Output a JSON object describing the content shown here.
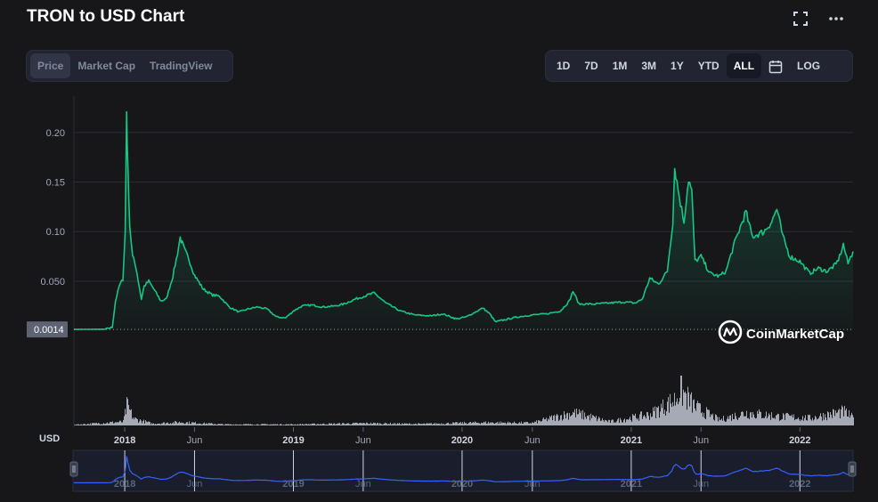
{
  "header": {
    "title": "TRON to USD Chart",
    "fullscreen_icon": "fullscreen-icon",
    "more_icon": "more-horizontal-icon"
  },
  "view_tabs": [
    {
      "label": "Price",
      "active": true
    },
    {
      "label": "Market Cap",
      "active": false
    },
    {
      "label": "TradingView",
      "active": false
    }
  ],
  "range_tabs": [
    {
      "label": "1D",
      "active": false
    },
    {
      "label": "7D",
      "active": false
    },
    {
      "label": "1M",
      "active": false
    },
    {
      "label": "3M",
      "active": false
    },
    {
      "label": "1Y",
      "active": false
    },
    {
      "label": "YTD",
      "active": false
    },
    {
      "label": "ALL",
      "active": true
    }
  ],
  "calendar_icon": "calendar-icon",
  "log_label": "LOG",
  "watermark": "CoinMarketCap",
  "colors": {
    "line": "#16c784",
    "nav_line": "#3861fb",
    "volume": "#c8cfdb",
    "background": "#17171a"
  },
  "chart_data": {
    "type": "line",
    "series_name": "Price",
    "y_axis_ticks": [
      "0.20",
      "0.15",
      "0.10",
      "0.050"
    ],
    "y_tick_values": [
      0.2,
      0.15,
      0.1,
      0.05
    ],
    "ylim": [
      -0.047,
      0.225
    ],
    "reference_label": "0.0014",
    "reference_value": 0.0014,
    "unit_label": "USD",
    "x_ticks": [
      {
        "label": "2018",
        "t": "2018-01-01"
      },
      {
        "label": "Jun",
        "t": "2018-06-01"
      },
      {
        "label": "2019",
        "t": "2019-01-01"
      },
      {
        "label": "Jun",
        "t": "2019-06-01"
      },
      {
        "label": "2020",
        "t": "2020-01-01"
      },
      {
        "label": "Jun",
        "t": "2020-06-01"
      },
      {
        "label": "2021",
        "t": "2021-01-01"
      },
      {
        "label": "Jun",
        "t": "2021-06-01"
      },
      {
        "label": "2022",
        "t": "2022-01-01"
      }
    ],
    "x_range": [
      "2017-09-13",
      "2022-04-26"
    ],
    "points": [
      [
        "2017-09-13",
        0.0014
      ],
      [
        "2017-11-20",
        0.0016
      ],
      [
        "2017-12-05",
        0.0035
      ],
      [
        "2017-12-12",
        0.03
      ],
      [
        "2017-12-20",
        0.045
      ],
      [
        "2017-12-28",
        0.052
      ],
      [
        "2018-01-02",
        0.1
      ],
      [
        "2018-01-05",
        0.222
      ],
      [
        "2018-01-08",
        0.16
      ],
      [
        "2018-01-12",
        0.105
      ],
      [
        "2018-01-18",
        0.075
      ],
      [
        "2018-01-25",
        0.065
      ],
      [
        "2018-02-06",
        0.032
      ],
      [
        "2018-02-12",
        0.045
      ],
      [
        "2018-02-22",
        0.05
      ],
      [
        "2018-03-05",
        0.042
      ],
      [
        "2018-03-20",
        0.03
      ],
      [
        "2018-04-01",
        0.032
      ],
      [
        "2018-04-15",
        0.055
      ],
      [
        "2018-04-25",
        0.078
      ],
      [
        "2018-05-01",
        0.094
      ],
      [
        "2018-05-10",
        0.082
      ],
      [
        "2018-05-20",
        0.072
      ],
      [
        "2018-06-01",
        0.056
      ],
      [
        "2018-06-20",
        0.042
      ],
      [
        "2018-07-10",
        0.036
      ],
      [
        "2018-07-25",
        0.035
      ],
      [
        "2018-08-15",
        0.024
      ],
      [
        "2018-09-05",
        0.019
      ],
      [
        "2018-09-25",
        0.022
      ],
      [
        "2018-10-15",
        0.024
      ],
      [
        "2018-11-05",
        0.022
      ],
      [
        "2018-11-25",
        0.014
      ],
      [
        "2018-12-15",
        0.013
      ],
      [
        "2019-01-01",
        0.02
      ],
      [
        "2019-01-20",
        0.025
      ],
      [
        "2019-02-10",
        0.026
      ],
      [
        "2019-03-05",
        0.024
      ],
      [
        "2019-04-01",
        0.025
      ],
      [
        "2019-04-20",
        0.027
      ],
      [
        "2019-05-15",
        0.032
      ],
      [
        "2019-06-10",
        0.036
      ],
      [
        "2019-06-25",
        0.038
      ],
      [
        "2019-07-20",
        0.028
      ],
      [
        "2019-08-20",
        0.02
      ],
      [
        "2019-09-20",
        0.016
      ],
      [
        "2019-10-25",
        0.015
      ],
      [
        "2019-11-20",
        0.017
      ],
      [
        "2019-12-20",
        0.012
      ],
      [
        "2020-01-10",
        0.014
      ],
      [
        "2020-02-15",
        0.023
      ],
      [
        "2020-03-01",
        0.017
      ],
      [
        "2020-03-13",
        0.009
      ],
      [
        "2020-04-01",
        0.011
      ],
      [
        "2020-05-01",
        0.014
      ],
      [
        "2020-06-01",
        0.016
      ],
      [
        "2020-07-01",
        0.017
      ],
      [
        "2020-08-01",
        0.02
      ],
      [
        "2020-08-20",
        0.03
      ],
      [
        "2020-08-28",
        0.04
      ],
      [
        "2020-09-10",
        0.027
      ],
      [
        "2020-10-15",
        0.027
      ],
      [
        "2020-11-15",
        0.028
      ],
      [
        "2020-12-15",
        0.029
      ],
      [
        "2021-01-10",
        0.028
      ],
      [
        "2021-01-25",
        0.032
      ],
      [
        "2021-02-10",
        0.053
      ],
      [
        "2021-03-01",
        0.047
      ],
      [
        "2021-03-20",
        0.06
      ],
      [
        "2021-04-01",
        0.11
      ],
      [
        "2021-04-05",
        0.165
      ],
      [
        "2021-04-15",
        0.135
      ],
      [
        "2021-04-25",
        0.11
      ],
      [
        "2021-05-05",
        0.153
      ],
      [
        "2021-05-12",
        0.14
      ],
      [
        "2021-05-19",
        0.07
      ],
      [
        "2021-06-01",
        0.075
      ],
      [
        "2021-06-20",
        0.058
      ],
      [
        "2021-07-10",
        0.055
      ],
      [
        "2021-07-25",
        0.06
      ],
      [
        "2021-08-10",
        0.085
      ],
      [
        "2021-09-06",
        0.12
      ],
      [
        "2021-09-20",
        0.095
      ],
      [
        "2021-10-15",
        0.1
      ],
      [
        "2021-11-01",
        0.11
      ],
      [
        "2021-11-12",
        0.123
      ],
      [
        "2021-11-25",
        0.095
      ],
      [
        "2021-12-10",
        0.075
      ],
      [
        "2022-01-01",
        0.07
      ],
      [
        "2022-01-22",
        0.058
      ],
      [
        "2022-02-10",
        0.063
      ],
      [
        "2022-03-01",
        0.06
      ],
      [
        "2022-03-20",
        0.067
      ],
      [
        "2022-03-28",
        0.075
      ],
      [
        "2022-04-05",
        0.087
      ],
      [
        "2022-04-15",
        0.068
      ],
      [
        "2022-04-26",
        0.08
      ]
    ],
    "volume_points": [
      [
        "2017-09-13",
        0.02
      ],
      [
        "2017-12-28",
        0.1
      ],
      [
        "2018-01-05",
        0.55
      ],
      [
        "2018-01-20",
        0.18
      ],
      [
        "2018-03-01",
        0.05
      ],
      [
        "2018-05-01",
        0.09
      ],
      [
        "2018-08-01",
        0.03
      ],
      [
        "2019-01-01",
        0.03
      ],
      [
        "2019-06-10",
        0.06
      ],
      [
        "2019-10-01",
        0.04
      ],
      [
        "2020-02-15",
        0.08
      ],
      [
        "2020-06-01",
        0.07
      ],
      [
        "2020-08-28",
        0.35
      ],
      [
        "2020-11-15",
        0.1
      ],
      [
        "2021-02-10",
        0.3
      ],
      [
        "2021-04-05",
        0.7
      ],
      [
        "2021-04-15",
        1.0
      ],
      [
        "2021-05-19",
        0.5
      ],
      [
        "2021-07-10",
        0.15
      ],
      [
        "2021-09-06",
        0.35
      ],
      [
        "2021-11-12",
        0.25
      ],
      [
        "2022-01-22",
        0.2
      ],
      [
        "2022-04-05",
        0.38
      ],
      [
        "2022-04-26",
        0.2
      ]
    ]
  }
}
